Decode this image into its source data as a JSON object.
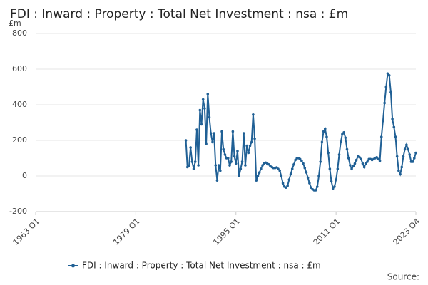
{
  "chart_data": {
    "type": "line",
    "title": "FDI : Inward : Property : Total Net Investment : nsa : £m",
    "y_unit": "£m",
    "source": "Source:",
    "categories": [
      "1963 Q1",
      null,
      null,
      null,
      null,
      null,
      null,
      null,
      null,
      null,
      null,
      null,
      null,
      null,
      null,
      null,
      null,
      null,
      null,
      null,
      null,
      null,
      null,
      null,
      null,
      null,
      null,
      null,
      null,
      null,
      null,
      null,
      null,
      null,
      null,
      null,
      null,
      null,
      null,
      null,
      null,
      null,
      null,
      null,
      null,
      null,
      null,
      null,
      null,
      null,
      null,
      null,
      null,
      null,
      null,
      null,
      null,
      null,
      null,
      null,
      null,
      null,
      null,
      null,
      "1979 Q1",
      null,
      null,
      null,
      null,
      null,
      null,
      null,
      null,
      null,
      null,
      null,
      null,
      null,
      null,
      null,
      null,
      null,
      null,
      null,
      null,
      null,
      null,
      null,
      null,
      null,
      null,
      null,
      null,
      null,
      null,
      null,
      null,
      null,
      null,
      null,
      null,
      null,
      null,
      null,
      null,
      null,
      null,
      null,
      null,
      null,
      null,
      null,
      null,
      null,
      null,
      null,
      null,
      null,
      null,
      null,
      null,
      null,
      null,
      null,
      null,
      null,
      null,
      null,
      "1995 Q1",
      null,
      null,
      null,
      null,
      null,
      null,
      null,
      null,
      null,
      null,
      null,
      null,
      null,
      null,
      null,
      null,
      null,
      null,
      null,
      null,
      null,
      null,
      null,
      null,
      null,
      null,
      null,
      null,
      null,
      null,
      null,
      null,
      null,
      null,
      null,
      null,
      null,
      null,
      null,
      null,
      null,
      null,
      null,
      null,
      null,
      null,
      null,
      null,
      null,
      null,
      null,
      null,
      null,
      null,
      null,
      null,
      null,
      null,
      null,
      null,
      null,
      null,
      null,
      "2011 Q1",
      null,
      null,
      null,
      null,
      null,
      null,
      null,
      null,
      null,
      null,
      null,
      null,
      null,
      null,
      null,
      null,
      null,
      null,
      null,
      null,
      null,
      null,
      null,
      null,
      null,
      null,
      null,
      null,
      null,
      null,
      null,
      null,
      null,
      null,
      null,
      null,
      null,
      null,
      null,
      null,
      null,
      null,
      null,
      null,
      null,
      null,
      null,
      null,
      null,
      null,
      "2023 Q4"
    ],
    "series": [
      {
        "name": "FDI : Inward : Property : Total Net Investment : nsa : £m",
        "color": "#206095",
        "values": [
          null,
          null,
          null,
          null,
          null,
          null,
          null,
          null,
          null,
          null,
          null,
          null,
          null,
          null,
          null,
          null,
          null,
          null,
          null,
          null,
          null,
          null,
          null,
          null,
          null,
          null,
          null,
          null,
          null,
          null,
          null,
          null,
          null,
          null,
          null,
          null,
          null,
          null,
          null,
          null,
          null,
          null,
          null,
          null,
          null,
          null,
          null,
          null,
          null,
          null,
          null,
          null,
          null,
          null,
          null,
          null,
          null,
          null,
          null,
          null,
          null,
          null,
          null,
          null,
          null,
          null,
          null,
          null,
          null,
          null,
          null,
          null,
          null,
          null,
          null,
          null,
          null,
          null,
          null,
          null,
          null,
          null,
          null,
          null,
          null,
          null,
          null,
          null,
          null,
          null,
          null,
          null,
          null,
          null,
          null,
          null,
          200,
          50,
          55,
          160,
          80,
          40,
          80,
          260,
          60,
          370,
          290,
          430,
          380,
          180,
          460,
          330,
          240,
          190,
          240,
          60,
          -25,
          60,
          30,
          250,
          150,
          120,
          100,
          100,
          60,
          80,
          250,
          110,
          70,
          140,
          0,
          40,
          80,
          240,
          60,
          170,
          130,
          170,
          190,
          345,
          210,
          -25,
          0,
          20,
          40,
          60,
          70,
          75,
          70,
          65,
          55,
          50,
          45,
          45,
          48,
          40,
          30,
          0,
          -40,
          -60,
          -65,
          -55,
          -20,
          10,
          40,
          65,
          90,
          100,
          100,
          95,
          85,
          70,
          45,
          20,
          -10,
          -40,
          -65,
          -75,
          -80,
          -80,
          -60,
          0,
          80,
          190,
          250,
          265,
          220,
          130,
          40,
          -30,
          -70,
          -60,
          -20,
          40,
          120,
          190,
          235,
          245,
          215,
          150,
          100,
          60,
          40,
          55,
          70,
          90,
          110,
          105,
          95,
          70,
          50,
          70,
          80,
          95,
          95,
          90,
          95,
          100,
          105,
          95,
          85,
          220,
          310,
          410,
          500,
          575,
          565,
          470,
          320,
          275,
          220,
          110,
          30,
          10,
          50,
          110,
          150,
          175,
          150,
          120,
          80,
          80,
          100,
          130
        ]
      }
    ],
    "ylim": [
      -200,
      800
    ],
    "yticks": [
      -200,
      0,
      200,
      400,
      600,
      800
    ],
    "grid": true
  }
}
